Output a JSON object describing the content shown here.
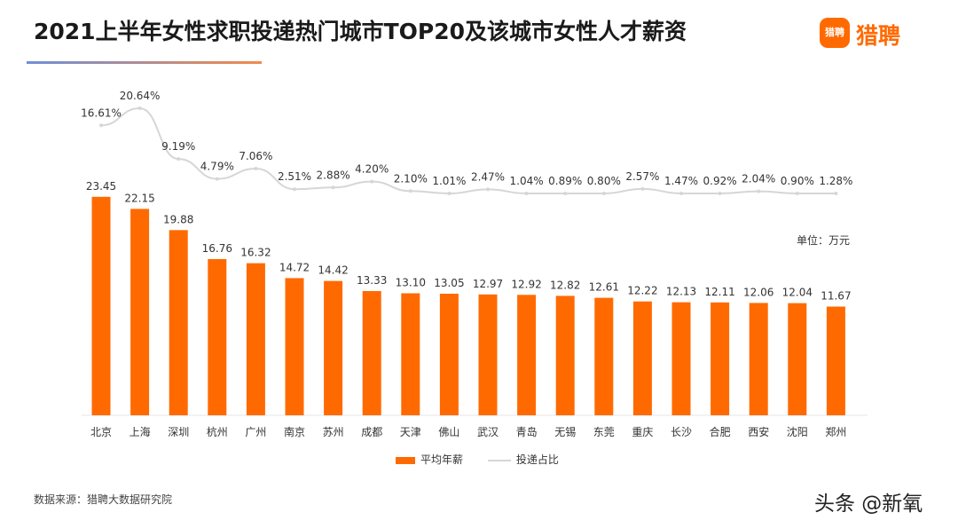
{
  "title": "2021上半年女性求职投递热门城市TOP20及该城市女性人才薪资",
  "logo": {
    "badge": "猎聘",
    "text": "猎聘",
    "color": "#ff6a00"
  },
  "unit": "单位：万元",
  "source": "数据来源：猎聘大数据研究院",
  "watermark": "头条 @新氧",
  "legend": {
    "bar": "平均年薪",
    "line": "投递占比"
  },
  "colors": {
    "bar": "#ff6a00",
    "line": "#d6d6d6"
  },
  "chart_data": {
    "type": "bar",
    "categories": [
      "北京",
      "上海",
      "深圳",
      "杭州",
      "广州",
      "南京",
      "苏州",
      "成都",
      "天津",
      "佛山",
      "武汉",
      "青岛",
      "无锡",
      "东莞",
      "重庆",
      "长沙",
      "合肥",
      "西安",
      "沈阳",
      "郑州"
    ],
    "series": [
      {
        "name": "平均年薪",
        "type": "bar",
        "values": [
          23.45,
          22.15,
          19.88,
          16.76,
          16.32,
          14.72,
          14.42,
          13.33,
          13.1,
          13.05,
          12.97,
          12.92,
          12.82,
          12.61,
          12.22,
          12.13,
          12.11,
          12.06,
          12.04,
          11.67
        ],
        "labels": [
          "23.45",
          "22.15",
          "19.88",
          "16.76",
          "16.32",
          "14.72",
          "14.42",
          "13.33",
          "13.10",
          "13.05",
          "12.97",
          "12.92",
          "12.82",
          "12.61",
          "12.22",
          "12.13",
          "12.11",
          "12.06",
          "12.04",
          "11.67"
        ]
      },
      {
        "name": "投递占比",
        "type": "line",
        "unit": "%",
        "values": [
          16.61,
          20.64,
          9.19,
          4.79,
          7.06,
          2.51,
          2.88,
          4.2,
          2.1,
          1.01,
          2.47,
          1.04,
          0.89,
          0.8,
          2.57,
          1.47,
          0.92,
          2.04,
          0.9,
          1.28
        ],
        "labels": [
          "16.61%",
          "20.64%",
          "9.19%",
          "4.79%",
          "7.06%",
          "2.51%",
          "2.88%",
          "4.20%",
          "2.10%",
          "1.01%",
          "2.47%",
          "1.04%",
          "0.89%",
          "0.80%",
          "2.57%",
          "1.47%",
          "0.92%",
          "2.04%",
          "0.90%",
          "1.28%"
        ]
      }
    ],
    "ylabel": "万元",
    "legend_position": "bottom-center",
    "grid": false
  }
}
